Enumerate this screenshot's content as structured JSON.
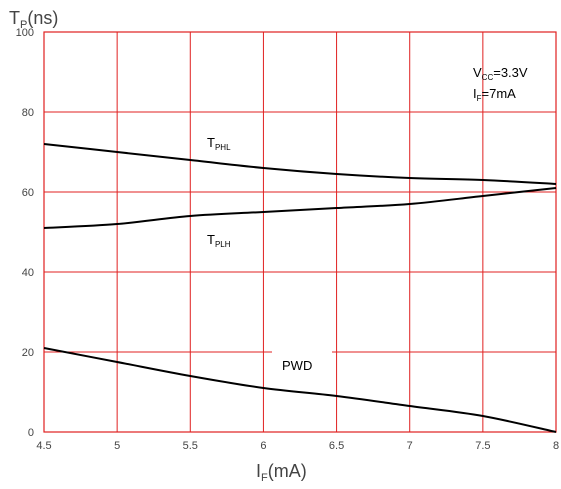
{
  "chart_data": {
    "type": "line",
    "x_axis": {
      "main": "I",
      "sub": "F",
      "rest": "(mA)"
    },
    "y_axis": {
      "main": "T",
      "sub": "P",
      "rest": "(ns)"
    },
    "xlim": [
      4.5,
      8
    ],
    "ylim": [
      0,
      100
    ],
    "x_ticks": [
      "4.5",
      "5",
      "5.5",
      "6",
      "6.5",
      "7",
      "7.5",
      "8"
    ],
    "y_ticks": [
      "0",
      "20",
      "40",
      "60",
      "80",
      "100"
    ],
    "grid": true,
    "grid_color": "#e02020",
    "line_color": "#000000",
    "conditions": [
      {
        "main": "V",
        "sub": "CC",
        "rest": "=3.3V"
      },
      {
        "main": "I",
        "sub": "F",
        "rest": "=7mA"
      }
    ],
    "series": [
      {
        "label_main": "T",
        "label_sub": "PHL",
        "x": [
          4.5,
          5,
          5.5,
          6,
          6.5,
          7,
          7.5,
          8
        ],
        "y": [
          72,
          70,
          68,
          66,
          64.5,
          63.5,
          63,
          62
        ]
      },
      {
        "label_main": "T",
        "label_sub": "PLH",
        "x": [
          4.5,
          5,
          5.5,
          6,
          6.5,
          7,
          7.5,
          8
        ],
        "y": [
          51,
          52,
          54,
          55,
          56,
          57,
          59,
          61
        ]
      },
      {
        "label_main": "PWD",
        "label_sub": "",
        "x": [
          4.5,
          5,
          5.5,
          6,
          6.5,
          7,
          7.5,
          8
        ],
        "y": [
          21,
          17.5,
          14,
          11,
          9,
          6.5,
          4,
          0
        ]
      }
    ]
  }
}
